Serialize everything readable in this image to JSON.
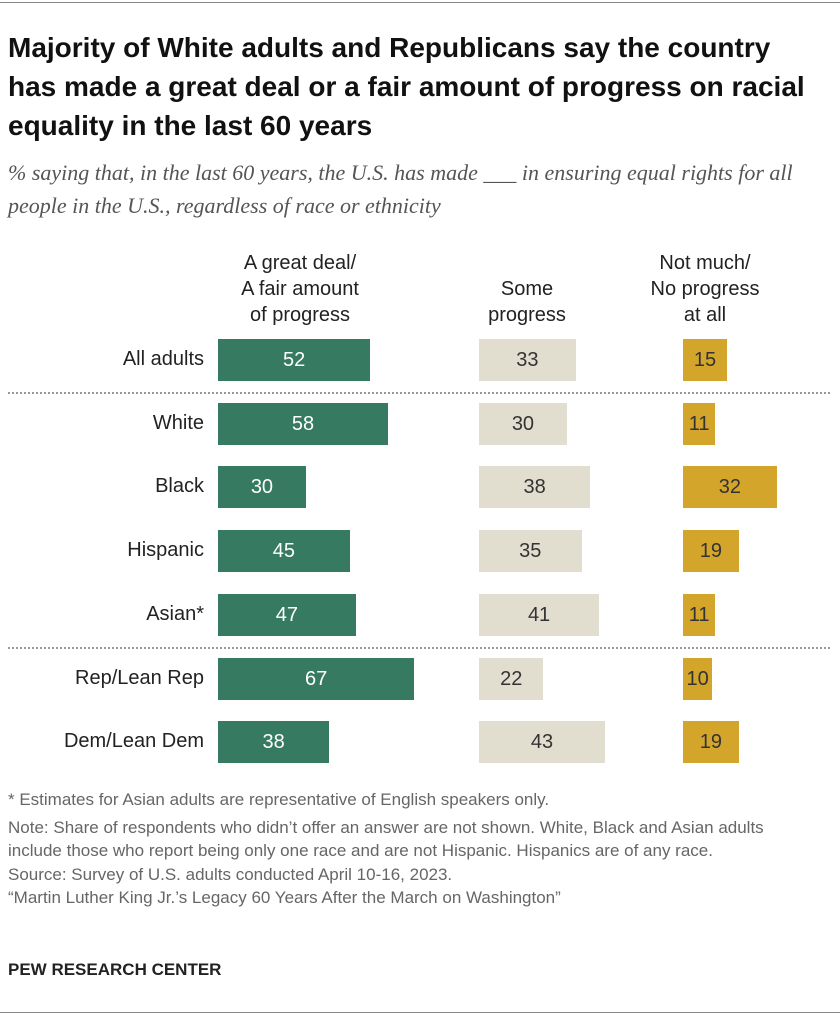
{
  "chart_data": {
    "type": "bar",
    "title": "Majority of White adults and Republicans say the country has made a great deal or a fair amount of progress on racial equality in the last 60 years",
    "subtitle": "% saying that, in the last 60 years, the U.S. has made ___ in ensuring equal rights for all people in the U.S., regardless of race or ethnicity",
    "categories": [
      "All adults",
      "White",
      "Black",
      "Hispanic",
      "Asian*",
      "Rep/Lean Rep",
      "Dem/Lean Dem"
    ],
    "series": [
      {
        "name": "A great deal/\nA fair amount\nof progress",
        "color": "#367a62",
        "values": [
          52,
          58,
          30,
          45,
          47,
          67,
          38
        ]
      },
      {
        "name": "Some\nprogress",
        "color": "#e1ddcf",
        "values": [
          33,
          30,
          38,
          35,
          41,
          22,
          43
        ]
      },
      {
        "name": "Not much/\nNo progress\nat all",
        "color": "#d3a52a",
        "values": [
          15,
          11,
          32,
          19,
          11,
          10,
          19
        ]
      }
    ],
    "notes": [
      "* Estimates for Asian adults are representative of English speakers only.",
      "Note: Share of respondents who didn’t offer an answer are not shown. White, Black and Asian adults include those who report being only one race and are not Hispanic. Hispanics are of any race.",
      "Source: Survey of U.S. adults conducted April 10-16, 2023.",
      "“Martin Luther King Jr.’s Legacy 60 Years After the March on Washington”"
    ],
    "source": "PEW RESEARCH CENTER"
  }
}
